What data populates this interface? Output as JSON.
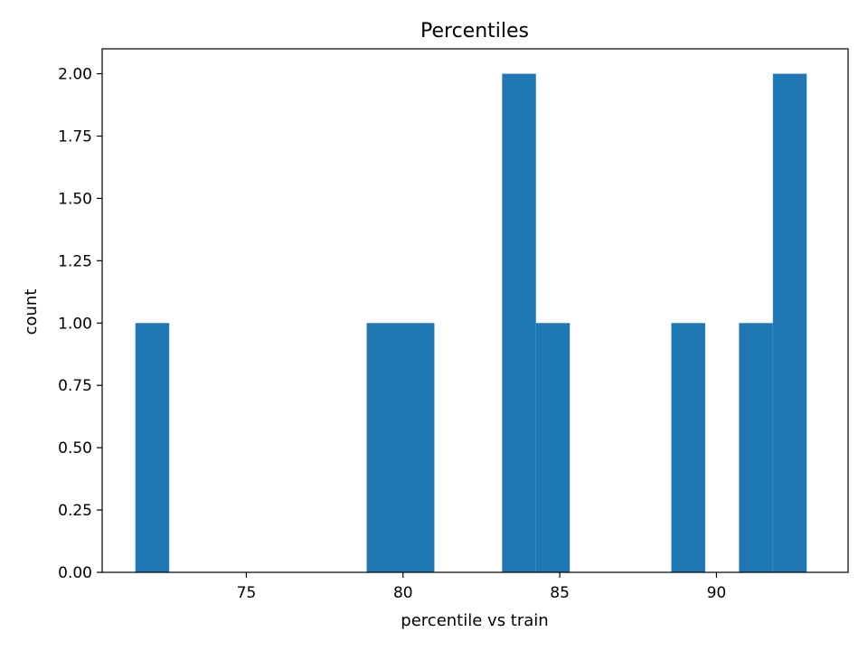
{
  "chart_data": {
    "type": "bar",
    "histogram": true,
    "title": "Percentiles",
    "xlabel": "percentile vs train",
    "ylabel": "count",
    "xlim": [
      70.4,
      94.2
    ],
    "ylim": [
      0,
      2.1
    ],
    "xticks": [
      75,
      80,
      85,
      90
    ],
    "xtick_labels": [
      "75",
      "80",
      "85",
      "90"
    ],
    "yticks": [
      0,
      0.25,
      0.5,
      0.75,
      1.0,
      1.25,
      1.5,
      1.75,
      2.0
    ],
    "ytick_labels": [
      "0.00",
      "0.25",
      "0.50",
      "0.75",
      "1.00",
      "1.25",
      "1.50",
      "1.75",
      "2.00"
    ],
    "bins": [
      {
        "start": 71.46,
        "end": 72.54,
        "count": 1
      },
      {
        "start": 78.84,
        "end": 79.92,
        "count": 1
      },
      {
        "start": 79.92,
        "end": 81.0,
        "count": 1
      },
      {
        "start": 83.16,
        "end": 84.24,
        "count": 2
      },
      {
        "start": 84.24,
        "end": 85.32,
        "count": 1
      },
      {
        "start": 88.56,
        "end": 89.64,
        "count": 1
      },
      {
        "start": 90.72,
        "end": 91.8,
        "count": 1
      },
      {
        "start": 91.8,
        "end": 92.88,
        "count": 2
      }
    ],
    "bar_color": "#1f77b4",
    "grid": false
  }
}
